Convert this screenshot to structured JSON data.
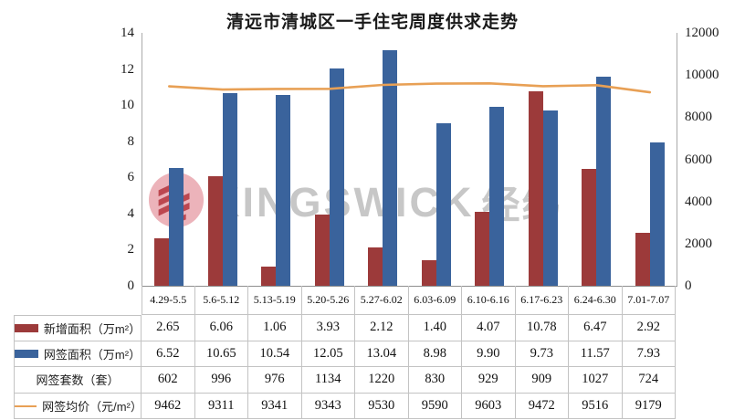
{
  "title": "清远市清城区一手住宅周度供求走势",
  "watermark": {
    "brand": "KINGSWICK",
    "brand_cn": "经纬"
  },
  "colors": {
    "bar_new_area": "#9c3a3a",
    "bar_signed_area": "#3a639c",
    "line_avg_price": "#e8a055",
    "watermark_gray": "#c7c7c7",
    "watermark_logo_pink": "#ecb3ba",
    "watermark_logo_red": "#bc4750",
    "table_border": "#c3c3c3",
    "axis_line": "#8f8f8f"
  },
  "chart_data": {
    "type": "bar",
    "subtype": "combo-bar-line-with-data-table",
    "title": "清远市清城区一手住宅周度供求走势",
    "categories": [
      "4.29-5.5",
      "5.6-5.12",
      "5.13-5.19",
      "5.20-5.26",
      "5.27-6.02",
      "6.03-6.09",
      "6.10-6.16",
      "6.17-6.23",
      "6.24-6.30",
      "7.01-7.07"
    ],
    "series": [
      {
        "name": "新增面积（万m²）",
        "type": "bar",
        "axis": "left",
        "color": "#9c3a3a",
        "swatch": "bar",
        "values": [
          2.65,
          6.06,
          1.06,
          3.93,
          2.12,
          1.4,
          4.07,
          10.78,
          6.47,
          2.92
        ],
        "labels": [
          "2.65",
          "6.06",
          "1.06",
          "3.93",
          "2.12",
          "1.40",
          "4.07",
          "10.78",
          "6.47",
          "2.92"
        ]
      },
      {
        "name": "网签面积（万m²）",
        "type": "bar",
        "axis": "left",
        "color": "#3a639c",
        "swatch": "bar",
        "values": [
          6.52,
          10.65,
          10.54,
          12.05,
          13.04,
          8.98,
          9.9,
          9.73,
          11.57,
          7.93
        ],
        "labels": [
          "6.52",
          "10.65",
          "10.54",
          "12.05",
          "13.04",
          "8.98",
          "9.90",
          "9.73",
          "11.57",
          "7.93"
        ]
      },
      {
        "name": "网签套数（套）",
        "type": "table-only",
        "axis": "none",
        "swatch": "none",
        "values": [
          602,
          996,
          976,
          1134,
          1220,
          830,
          929,
          909,
          1027,
          724
        ],
        "labels": [
          "602",
          "996",
          "976",
          "1134",
          "1220",
          "830",
          "929",
          "909",
          "1027",
          "724"
        ]
      },
      {
        "name": "网签均价（元/m²）",
        "type": "line",
        "axis": "right",
        "color": "#e8a055",
        "swatch": "line",
        "values": [
          9462,
          9311,
          9341,
          9343,
          9530,
          9590,
          9603,
          9472,
          9516,
          9179
        ],
        "labels": [
          "9462",
          "9311",
          "9341",
          "9343",
          "9530",
          "9590",
          "9603",
          "9472",
          "9516",
          "9179"
        ]
      }
    ],
    "left_axis": {
      "min": 0,
      "max": 14,
      "step": 2,
      "ticks": [
        0,
        2,
        4,
        6,
        8,
        10,
        12,
        14
      ]
    },
    "right_axis": {
      "min": 0,
      "max": 12000,
      "step": 2000,
      "ticks": [
        0,
        2000,
        4000,
        6000,
        8000,
        10000,
        12000
      ]
    },
    "grid": false,
    "legend_position": "table-left-column"
  }
}
